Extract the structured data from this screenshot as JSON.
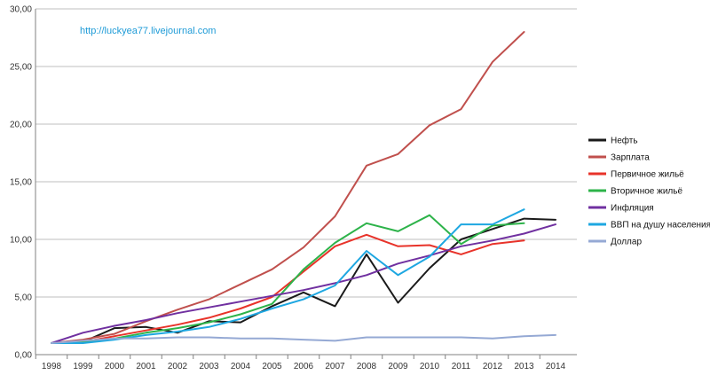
{
  "watermark": "http://luckyea77.livejournal.com",
  "chart_data": {
    "type": "line",
    "title": "",
    "xlabel": "",
    "ylabel": "",
    "ylim": [
      0,
      30
    ],
    "yticks": [
      "0,00",
      "5,00",
      "10,00",
      "15,00",
      "20,00",
      "25,00",
      "30,00"
    ],
    "grid": "horizontal",
    "legend_position": "right",
    "x": [
      "1998",
      "1999",
      "2000",
      "2001",
      "2002",
      "2003",
      "2004",
      "2005",
      "2006",
      "2007",
      "2008",
      "2009",
      "2010",
      "2011",
      "2012",
      "2013",
      "2014"
    ],
    "series": [
      {
        "name": "Нефть",
        "color": "#1a1a1a",
        "values": [
          1.0,
          1.1,
          2.3,
          2.4,
          1.9,
          2.9,
          2.8,
          4.2,
          5.4,
          4.2,
          8.7,
          4.5,
          7.5,
          10.0,
          10.9,
          11.8,
          11.7
        ]
      },
      {
        "name": "Зарплата",
        "color": "#C0504D",
        "values": [
          1.0,
          1.3,
          1.8,
          2.9,
          3.9,
          4.8,
          6.1,
          7.4,
          9.3,
          12.0,
          16.4,
          17.4,
          19.9,
          21.3,
          25.4,
          28.0,
          null
        ]
      },
      {
        "name": "Первичное жильё",
        "color": "#E8332A",
        "values": [
          1.0,
          1.1,
          1.6,
          2.1,
          2.6,
          3.2,
          4.0,
          5.0,
          7.2,
          9.4,
          10.4,
          9.4,
          9.5,
          8.7,
          9.6,
          9.9,
          null
        ]
      },
      {
        "name": "Вторичное жильё",
        "color": "#2DB34A",
        "values": [
          1.0,
          1.1,
          1.4,
          1.9,
          2.3,
          2.8,
          3.5,
          4.4,
          7.4,
          9.7,
          11.4,
          10.7,
          12.1,
          9.6,
          11.2,
          11.4,
          null
        ]
      },
      {
        "name": "Инфляция",
        "color": "#7030A0",
        "values": [
          1.0,
          1.9,
          2.5,
          3.0,
          3.6,
          4.1,
          4.6,
          5.1,
          5.6,
          6.2,
          6.9,
          7.9,
          8.6,
          9.4,
          9.9,
          10.5,
          11.3
        ]
      },
      {
        "name": "ВВП на душу населения",
        "color": "#1EA7E1",
        "values": [
          1.0,
          1.0,
          1.3,
          1.7,
          2.0,
          2.4,
          3.1,
          4.0,
          4.8,
          6.0,
          9.0,
          6.9,
          8.5,
          11.3,
          11.3,
          12.6,
          null
        ]
      },
      {
        "name": "Доллар",
        "color": "#95A9D4",
        "values": [
          1.0,
          1.2,
          1.4,
          1.4,
          1.5,
          1.5,
          1.4,
          1.4,
          1.3,
          1.2,
          1.5,
          1.5,
          1.5,
          1.5,
          1.4,
          1.6,
          1.7
        ]
      }
    ]
  }
}
